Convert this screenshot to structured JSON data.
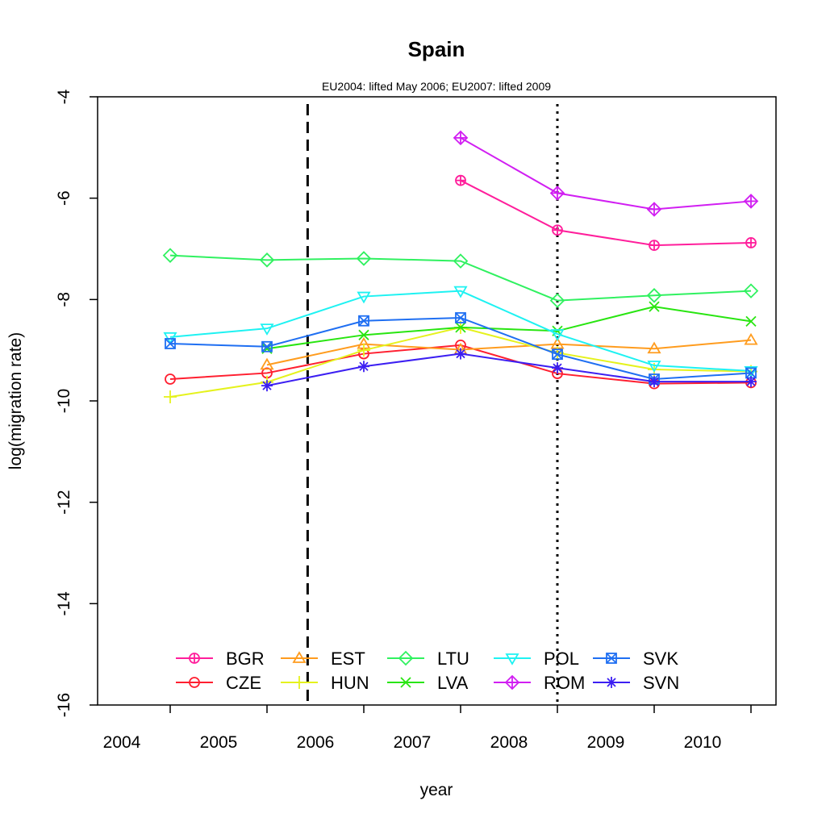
{
  "chart_data": {
    "type": "line",
    "title": "Spain",
    "subtitle": "EU2004: lifted May 2006; EU2007: lifted 2009",
    "xlabel": "year",
    "ylabel": "log(migration rate)",
    "xlim": [
      2003.5,
      2010.5
    ],
    "ylim": [
      -16,
      -4
    ],
    "x_tick_labels": [
      "2004",
      "2005",
      "2006",
      "2007",
      "2008",
      "2009",
      "2010"
    ],
    "y_ticks": [
      -4,
      -6,
      -8,
      -10,
      -12,
      -14,
      -16
    ],
    "y_tick_labels": [
      "-4",
      "-6",
      "-8",
      "-10",
      "-12",
      "-14",
      "-16"
    ],
    "x": [
      2004,
      2005,
      2006,
      2007,
      2008,
      2009,
      2010
    ],
    "vertical_lines": [
      {
        "label": "EU2004: lifted May 2006",
        "x": 2005.42,
        "style": "dashed"
      },
      {
        "label": "EU2007: lifted 2009",
        "x": 2008.0,
        "style": "dotted"
      }
    ],
    "legend_position": "bottom-center",
    "series": [
      {
        "name": "BGR",
        "color": "#ff1e9b",
        "marker": "circle-plus",
        "values": [
          null,
          null,
          null,
          -5.65,
          -6.63,
          -6.93,
          -6.88
        ]
      },
      {
        "name": "CZE",
        "color": "#ff1f30",
        "marker": "circle",
        "values": [
          -9.57,
          -9.45,
          -9.07,
          -8.9,
          -9.46,
          -9.66,
          -9.64
        ]
      },
      {
        "name": "EST",
        "color": "#ff9c1e",
        "marker": "triangle-up",
        "values": [
          null,
          -9.29,
          -8.88,
          -8.99,
          -8.88,
          -8.97,
          -8.8
        ]
      },
      {
        "name": "HUN",
        "color": "#e5f21d",
        "marker": "plus",
        "values": [
          -9.92,
          -9.63,
          -9.0,
          -8.55,
          -9.05,
          -9.38,
          -9.42
        ]
      },
      {
        "name": "LTU",
        "color": "#30f160",
        "marker": "diamond",
        "values": [
          -7.13,
          -7.22,
          -7.19,
          -7.24,
          -8.02,
          -7.92,
          -7.83
        ]
      },
      {
        "name": "LVA",
        "color": "#28e510",
        "marker": "cross",
        "values": [
          null,
          -8.97,
          -8.7,
          -8.55,
          -8.62,
          -8.14,
          -8.43
        ]
      },
      {
        "name": "POL",
        "color": "#1ef2f2",
        "marker": "triangle-down",
        "values": [
          -8.74,
          -8.57,
          -7.94,
          -7.83,
          -8.68,
          -9.3,
          -9.41
        ]
      },
      {
        "name": "ROM",
        "color": "#d11ff2",
        "marker": "diamond-plus",
        "values": [
          null,
          null,
          null,
          -4.81,
          -5.9,
          -6.22,
          -6.06
        ]
      },
      {
        "name": "SVK",
        "color": "#1f6ff2",
        "marker": "square-x",
        "values": [
          -8.87,
          -8.93,
          -8.42,
          -8.36,
          -9.08,
          -9.57,
          -9.45
        ]
      },
      {
        "name": "SVN",
        "color": "#3c1ff2",
        "marker": "asterisk",
        "values": [
          null,
          -9.7,
          -9.32,
          -9.07,
          -9.35,
          -9.62,
          -9.62
        ]
      }
    ]
  }
}
